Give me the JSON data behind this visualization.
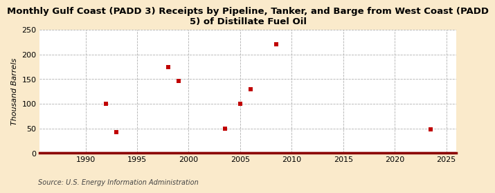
{
  "title": "Monthly Gulf Coast (PADD 3) Receipts by Pipeline, Tanker, and Barge from West Coast (PADD\n5) of Distillate Fuel Oil",
  "ylabel": "Thousand Barrels",
  "source": "Source: U.S. Energy Information Administration",
  "background_color": "#faeacb",
  "plot_bg_color": "#ffffff",
  "marker_color": "#c00000",
  "marker_size": 4,
  "xlim": [
    1985.5,
    2026
  ],
  "ylim": [
    0,
    250
  ],
  "yticks": [
    0,
    50,
    100,
    150,
    200,
    250
  ],
  "xticks": [
    1990,
    1995,
    2000,
    2005,
    2010,
    2015,
    2020,
    2025
  ],
  "data_x": [
    1992.0,
    1993.0,
    1998.0,
    1999.0,
    2003.5,
    2005.0,
    2006.0,
    2008.5,
    2023.5
  ],
  "data_y": [
    100,
    43,
    175,
    146,
    50,
    100,
    130,
    220,
    48
  ],
  "hline_color": "#8b0000",
  "hline_lw": 2.5,
  "grid_color": "#b0b0b0",
  "grid_lw": 0.6,
  "title_fontsize": 9.5,
  "ylabel_fontsize": 8,
  "tick_fontsize": 8,
  "source_fontsize": 7
}
